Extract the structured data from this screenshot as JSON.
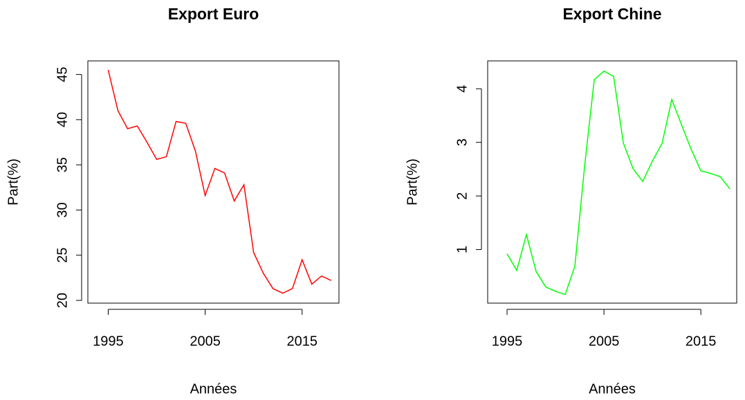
{
  "chart_data": [
    {
      "type": "line",
      "title": "Export Euro",
      "xlabel": "Années",
      "ylabel": "Part(%)",
      "color": "#ff0000",
      "x": [
        1995,
        1996,
        1997,
        1998,
        1999,
        2000,
        2001,
        2002,
        2003,
        2004,
        2005,
        2006,
        2007,
        2008,
        2009,
        2010,
        2011,
        2012,
        2013,
        2014,
        2015,
        2016,
        2017,
        2018
      ],
      "values": [
        45.5,
        41,
        39,
        39.3,
        37.5,
        35.6,
        35.9,
        39.8,
        39.6,
        36.5,
        31.6,
        34.6,
        34.1,
        31,
        32.8,
        25.3,
        23,
        21.3,
        20.8,
        21.3,
        24.5,
        21.8,
        22.7,
        22.2
      ],
      "xlim": [
        1992.9,
        2018.8
      ],
      "xticks": [
        1995,
        2005,
        2015
      ],
      "ylim": [
        19.7,
        46.5
      ],
      "yticks": [
        20,
        25,
        30,
        35,
        40,
        45
      ]
    },
    {
      "type": "line",
      "title": "Export Chine",
      "xlabel": "Années",
      "ylabel": "Part(%)",
      "color": "#00ff00",
      "x": [
        1995,
        1996,
        1997,
        1998,
        1999,
        2000,
        2001,
        2002,
        2003,
        2004,
        2005,
        2006,
        2007,
        2008,
        2009,
        2010,
        2011,
        2012,
        2013,
        2014,
        2015,
        2016,
        2017,
        2018
      ],
      "values": [
        0.92,
        0.61,
        1.28,
        0.59,
        0.3,
        0.22,
        0.16,
        0.69,
        2.55,
        4.17,
        4.33,
        4.23,
        2.99,
        2.51,
        2.27,
        2.65,
        2.98,
        3.8,
        3.33,
        2.87,
        2.47,
        2.42,
        2.36,
        2.13
      ],
      "xlim": [
        1993,
        2018.7
      ],
      "xticks": [
        1995,
        2005,
        2015
      ],
      "ylim": [
        0,
        4.52
      ],
      "yticks": [
        1,
        2,
        3,
        4
      ]
    }
  ]
}
